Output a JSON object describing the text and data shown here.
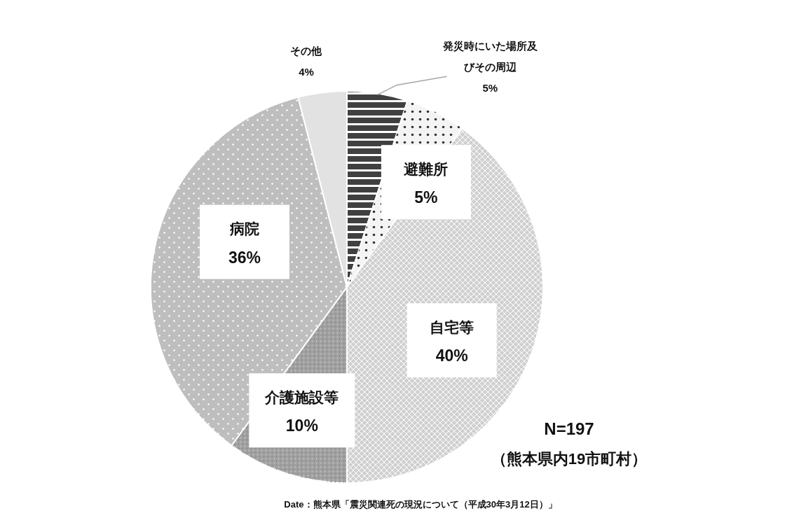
{
  "chart_data": {
    "type": "pie",
    "categories": [
      "発災時にいた場所及びその周辺",
      "避難所",
      "自宅等",
      "介護施設等",
      "病院",
      "その他"
    ],
    "values": [
      5,
      5,
      40,
      10,
      36,
      4
    ],
    "value_labels": [
      "5%",
      "5%",
      "40%",
      "10%",
      "36%",
      "4%"
    ],
    "colors": [
      "#404040",
      "#f4f4f4",
      "#d0d0d0",
      "#a0a0a0",
      "#bebebe",
      "#e2e2e2"
    ],
    "annotations": [
      "N=197",
      "（熊本県内19市町村）",
      "Date：熊本県「震災関連死の現況について（平成30年3月12日）」"
    ]
  }
}
